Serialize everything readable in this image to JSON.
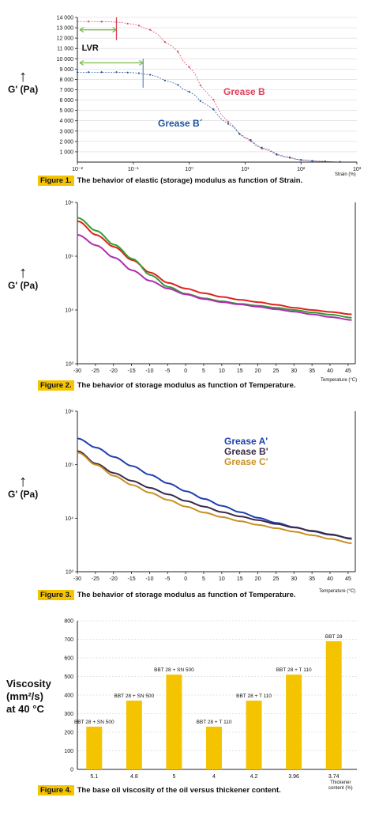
{
  "chart_data": [
    {
      "type": "line",
      "id": "fig1",
      "caption_num": "Figure 1.",
      "caption": "The behavior of elastic (storage) modulus as function of Strain.",
      "ylabel": "G' (Pa)",
      "xlabel": "Strain (%)",
      "x_scale": "log",
      "xlim": [
        0.01,
        1000
      ],
      "ylim": [
        0,
        14000
      ],
      "x_ticks": [
        0.01,
        0.1,
        1,
        10,
        100,
        1000
      ],
      "x_tick_labels": [
        "10⁻²",
        "10⁻¹",
        "10⁰",
        "10¹",
        "10²",
        "10³"
      ],
      "y_ticks": [
        1000,
        2000,
        3000,
        4000,
        5000,
        6000,
        7000,
        8000,
        9000,
        10000,
        11000,
        12000,
        13000,
        14000
      ],
      "y_tick_labels": [
        "1 000",
        "2 000",
        "3 000",
        "4 000",
        "5 000",
        "6 000",
        "7 000",
        "8 000",
        "9 000",
        "10 000",
        "11 000",
        "12 000",
        "13 000",
        "14 000"
      ],
      "grid": "horizontal",
      "annotations": [
        {
          "text": "LVR"
        }
      ],
      "series": [
        {
          "name": "Grease B",
          "color": "#e0405a",
          "x": [
            0.01,
            0.02,
            0.05,
            0.1,
            0.2,
            0.5,
            1,
            2,
            5,
            10,
            20,
            50,
            100,
            200,
            500
          ],
          "y": [
            13600,
            13600,
            13550,
            13350,
            12800,
            11200,
            9200,
            6800,
            3900,
            2300,
            1300,
            500,
            200,
            80,
            20
          ]
        },
        {
          "name": "Grease B´",
          "color": "#1a4f9c",
          "x": [
            0.01,
            0.02,
            0.05,
            0.1,
            0.2,
            0.5,
            1,
            2,
            5,
            10,
            20,
            50,
            100,
            200,
            500
          ],
          "y": [
            8700,
            8700,
            8700,
            8650,
            8450,
            7700,
            6800,
            5600,
            3700,
            2400,
            1400,
            550,
            220,
            80,
            20
          ]
        }
      ]
    },
    {
      "type": "line",
      "id": "fig2",
      "caption_num": "Figure 2.",
      "caption": "The behavior of storage modulus as function of Temperature.",
      "ylabel": "G' (Pa)",
      "xlabel": "Temperature (°C)",
      "y_scale": "log",
      "xlim": [
        -30,
        47
      ],
      "ylim": [
        1000,
        1000000
      ],
      "y_ticks": [
        1000,
        10000,
        100000,
        1000000
      ],
      "y_tick_labels": [
        "10³",
        "10⁴",
        "10⁵",
        "10⁶"
      ],
      "x_ticks": [
        -30,
        -25,
        -20,
        -15,
        -10,
        -5,
        0,
        5,
        10,
        15,
        20,
        25,
        30,
        35,
        40,
        45
      ],
      "x_tick_labels": [
        "-30",
        "-25",
        "-20",
        "-15",
        "-10",
        "-5",
        "0",
        "5",
        "10",
        "15",
        "20",
        "25",
        "30",
        "35",
        "40",
        "45"
      ],
      "series": [
        {
          "color": "#e02020",
          "x": [
            -30,
            -25,
            -20,
            -15,
            -10,
            -5,
            0,
            5,
            10,
            15,
            20,
            25,
            30,
            35,
            40,
            46
          ],
          "y": [
            450000,
            250000,
            150000,
            85000,
            50000,
            32000,
            25000,
            20500,
            17500,
            15500,
            14000,
            12500,
            11000,
            10000,
            9200,
            8300
          ]
        },
        {
          "color": "#30a030",
          "x": [
            -30,
            -25,
            -20,
            -15,
            -10,
            -5,
            0,
            5,
            10,
            15,
            20,
            25,
            30,
            35,
            40,
            46
          ],
          "y": [
            520000,
            300000,
            165000,
            90000,
            45000,
            27000,
            20000,
            16500,
            14500,
            13000,
            12000,
            11000,
            10000,
            9000,
            8200,
            7200
          ]
        },
        {
          "color": "#b02cb0",
          "x": [
            -30,
            -25,
            -20,
            -15,
            -10,
            -5,
            0,
            5,
            10,
            15,
            20,
            25,
            30,
            35,
            40,
            46
          ],
          "y": [
            250000,
            160000,
            95000,
            55000,
            35000,
            25000,
            19500,
            16000,
            14000,
            12700,
            11500,
            10300,
            9300,
            8300,
            7400,
            6500
          ]
        }
      ]
    },
    {
      "type": "line",
      "id": "fig3",
      "caption_num": "Figure 3.",
      "caption": "The behavior of storage modulus as function of Temperature.",
      "ylabel": "G' (Pa)",
      "xlabel": "Temperature (°C)",
      "y_scale": "log",
      "xlim": [
        -30,
        47
      ],
      "ylim": [
        1000,
        1000000
      ],
      "y_ticks": [
        1000,
        10000,
        100000,
        1000000
      ],
      "y_tick_labels": [
        "10³",
        "10⁴",
        "10⁵",
        "10⁶"
      ],
      "x_ticks": [
        -30,
        -25,
        -20,
        -15,
        -10,
        -5,
        0,
        5,
        10,
        15,
        20,
        25,
        30,
        35,
        40,
        45
      ],
      "x_tick_labels": [
        "-30",
        "-25",
        "-20",
        "-15",
        "-10",
        "-5",
        "0",
        "5",
        "10",
        "15",
        "20",
        "25",
        "30",
        "35",
        "40",
        "45"
      ],
      "legend": "top-right",
      "series": [
        {
          "name": "Grease A'",
          "color": "#1f3fb0",
          "x": [
            -30,
            -25,
            -20,
            -15,
            -10,
            -5,
            0,
            5,
            10,
            15,
            20,
            25,
            30,
            35,
            40,
            46
          ],
          "y": [
            310000,
            210000,
            140000,
            95000,
            65000,
            45000,
            32000,
            23000,
            17000,
            13000,
            10200,
            8200,
            6800,
            5700,
            4900,
            4200
          ]
        },
        {
          "name": "Grease B'",
          "color": "#3a2a4a",
          "x": [
            -30,
            -25,
            -20,
            -15,
            -10,
            -5,
            0,
            5,
            10,
            15,
            20,
            25,
            30,
            35,
            40,
            46
          ],
          "y": [
            180000,
            105000,
            70000,
            50000,
            37000,
            28000,
            21000,
            16500,
            13000,
            10800,
            9200,
            7800,
            6700,
            5800,
            5000,
            4100
          ]
        },
        {
          "name": "Grease C'",
          "color": "#c89020",
          "x": [
            -30,
            -25,
            -20,
            -15,
            -10,
            -5,
            0,
            5,
            10,
            15,
            20,
            25,
            30,
            35,
            40,
            46
          ],
          "y": [
            170000,
            100000,
            62000,
            42000,
            30000,
            22000,
            16500,
            12800,
            10500,
            8800,
            7500,
            6500,
            5600,
            4800,
            4100,
            3400
          ]
        }
      ]
    },
    {
      "type": "bar",
      "id": "fig4",
      "caption_num": "Figure 4.",
      "caption": "The base oil viscosity of the oil versus thickener content.",
      "ylabel_lines": [
        "Viscosity",
        "(mm²/s)",
        "at 40 °C"
      ],
      "xlabel_lines": [
        "Thickener",
        "content (%)"
      ],
      "ylim": [
        0,
        800
      ],
      "y_ticks": [
        0,
        100,
        200,
        300,
        400,
        500,
        600,
        700,
        800
      ],
      "y_tick_labels": [
        "0",
        "100",
        "200",
        "300",
        "400",
        "500",
        "600",
        "700",
        "800"
      ],
      "grid": "horizontal-dashed",
      "color": "#f5c400",
      "categories": [
        "5.1",
        "4.8",
        "5",
        "4",
        "4.2",
        "3.96",
        "3.74"
      ],
      "values": [
        230,
        370,
        510,
        230,
        370,
        510,
        690
      ],
      "bar_labels": [
        "BBT 28 + SN 500",
        "BBT 28 + SN 500",
        "BBT 28 + SN 500",
        "BBT 28 + T 110",
        "BBT 28 + T 110",
        "BBT 28 + T 110",
        "BBT 28"
      ]
    }
  ]
}
